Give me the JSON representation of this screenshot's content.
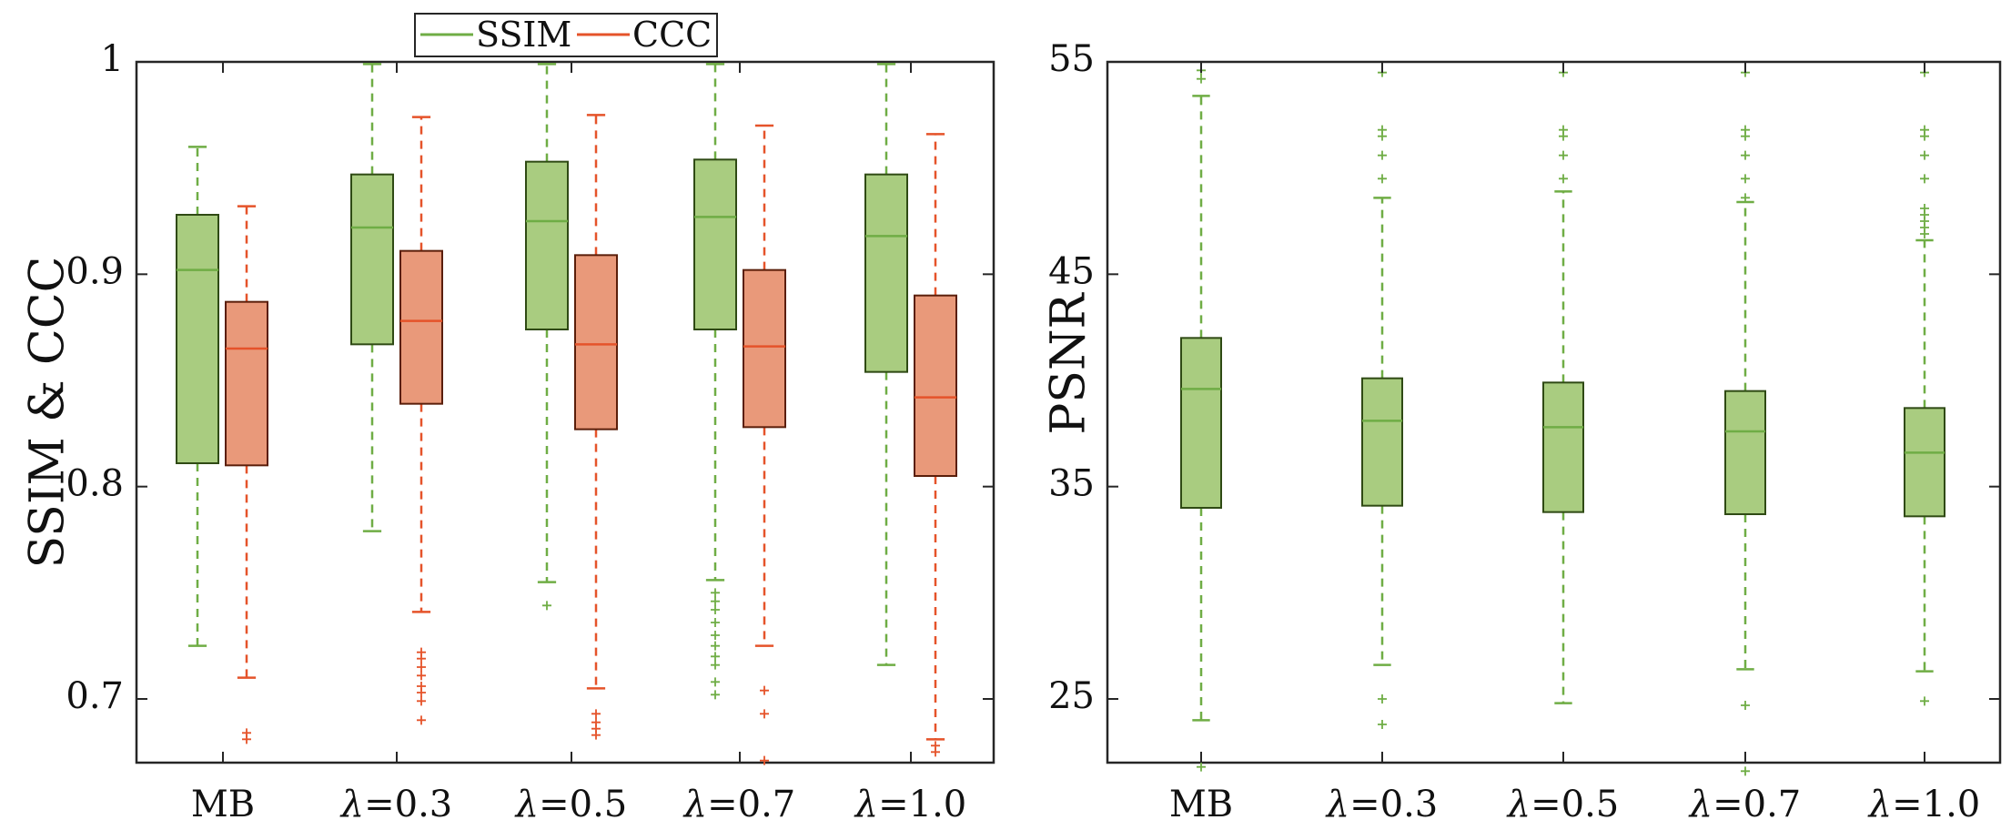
{
  "colors": {
    "ssim_fill": "#a9cc80",
    "ssim_edge": "#2f4a14",
    "ssim_whisker": "#6fad45",
    "ssim_median": "#6fad45",
    "ccc_fill": "#e9997a",
    "ccc_edge": "#5a1e0a",
    "ccc_whisker": "#e5532a",
    "ccc_median": "#e5532a",
    "axis": "#262626"
  },
  "chart_data": [
    {
      "type": "boxplot",
      "id": "left",
      "ylabel": "SSIM & CCC",
      "xlabel": "",
      "ylim": [
        0.67,
        1.0
      ],
      "yticks": [
        0.7,
        0.8,
        0.9,
        1.0
      ],
      "ytick_labels": [
        "0.7",
        "0.8",
        "0.9",
        "1"
      ],
      "categories": [
        "MB",
        "λ=0.3",
        "λ=0.5",
        "λ=0.7",
        "λ=1.0"
      ],
      "category_parts": [
        {
          "sym": "",
          "rest": "MB"
        },
        {
          "sym": "λ",
          "rest": "=0.3"
        },
        {
          "sym": "λ",
          "rest": "=0.5"
        },
        {
          "sym": "λ",
          "rest": "=0.7"
        },
        {
          "sym": "λ",
          "rest": "=1.0"
        }
      ],
      "legend": {
        "position": "top-center",
        "entries": [
          "SSIM",
          "CCC"
        ]
      },
      "series": [
        {
          "name": "SSIM",
          "boxes": [
            {
              "whislo": 0.725,
              "q1": 0.811,
              "med": 0.902,
              "q3": 0.928,
              "whishi": 0.96,
              "fliers": []
            },
            {
              "whislo": 0.779,
              "q1": 0.867,
              "med": 0.922,
              "q3": 0.947,
              "whishi": 0.999,
              "fliers": []
            },
            {
              "whislo": 0.755,
              "q1": 0.874,
              "med": 0.925,
              "q3": 0.953,
              "whishi": 0.999,
              "fliers": [
                0.744
              ]
            },
            {
              "whislo": 0.756,
              "q1": 0.874,
              "med": 0.927,
              "q3": 0.954,
              "whishi": 0.999,
              "fliers": [
                0.75,
                0.746,
                0.742,
                0.736,
                0.73,
                0.725,
                0.72,
                0.716,
                0.708,
                0.702
              ]
            },
            {
              "whislo": 0.716,
              "q1": 0.854,
              "med": 0.918,
              "q3": 0.947,
              "whishi": 0.999,
              "fliers": []
            }
          ]
        },
        {
          "name": "CCC",
          "boxes": [
            {
              "whislo": 0.71,
              "q1": 0.81,
              "med": 0.865,
              "q3": 0.887,
              "whishi": 0.932,
              "fliers": [
                0.684,
                0.681
              ]
            },
            {
              "whislo": 0.741,
              "q1": 0.839,
              "med": 0.878,
              "q3": 0.911,
              "whishi": 0.974,
              "fliers": [
                0.722,
                0.719,
                0.715,
                0.711,
                0.706,
                0.703,
                0.699,
                0.69
              ]
            },
            {
              "whislo": 0.705,
              "q1": 0.827,
              "med": 0.867,
              "q3": 0.909,
              "whishi": 0.975,
              "fliers": [
                0.693,
                0.689,
                0.686,
                0.683
              ]
            },
            {
              "whislo": 0.725,
              "q1": 0.828,
              "med": 0.866,
              "q3": 0.902,
              "whishi": 0.97,
              "fliers": [
                0.704,
                0.693,
                0.671
              ]
            },
            {
              "whislo": 0.681,
              "q1": 0.805,
              "med": 0.842,
              "q3": 0.89,
              "whishi": 0.966,
              "fliers": [
                0.678,
                0.675
              ]
            }
          ]
        }
      ]
    },
    {
      "type": "boxplot",
      "id": "right",
      "ylabel": "PSNR",
      "xlabel": "",
      "ylim": [
        22,
        55
      ],
      "yticks": [
        25,
        35,
        45,
        55
      ],
      "ytick_labels": [
        "25",
        "35",
        "45",
        "55"
      ],
      "categories": [
        "MB",
        "λ=0.3",
        "λ=0.5",
        "λ=0.7",
        "λ=1.0"
      ],
      "category_parts": [
        {
          "sym": "",
          "rest": "MB"
        },
        {
          "sym": "λ",
          "rest": "=0.3"
        },
        {
          "sym": "λ",
          "rest": "=0.5"
        },
        {
          "sym": "λ",
          "rest": "=0.7"
        },
        {
          "sym": "λ",
          "rest": "=1.0"
        }
      ],
      "series": [
        {
          "name": "PSNR",
          "boxes": [
            {
              "whislo": 24.0,
              "q1": 34.0,
              "med": 39.6,
              "q3": 42.0,
              "whishi": 53.4,
              "fliers": [
                54.6,
                54.2,
                21.8
              ]
            },
            {
              "whislo": 26.6,
              "q1": 34.1,
              "med": 38.1,
              "q3": 40.1,
              "whishi": 48.6,
              "fliers": [
                54.5,
                51.8,
                51.5,
                50.6,
                49.5,
                25.0,
                23.8
              ]
            },
            {
              "whislo": 24.8,
              "q1": 33.8,
              "med": 37.8,
              "q3": 39.9,
              "whishi": 48.9,
              "fliers": [
                54.5,
                51.8,
                51.5,
                50.6,
                49.5
              ]
            },
            {
              "whislo": 26.4,
              "q1": 33.7,
              "med": 37.6,
              "q3": 39.5,
              "whishi": 48.4,
              "fliers": [
                54.5,
                51.8,
                51.5,
                50.6,
                49.5,
                48.6,
                24.7,
                21.6
              ]
            },
            {
              "whislo": 26.3,
              "q1": 33.6,
              "med": 36.6,
              "q3": 38.7,
              "whishi": 46.6,
              "fliers": [
                54.5,
                51.8,
                51.5,
                50.6,
                49.5,
                48.1,
                47.8,
                47.5,
                47.2,
                46.9,
                24.9
              ]
            }
          ]
        }
      ]
    }
  ]
}
